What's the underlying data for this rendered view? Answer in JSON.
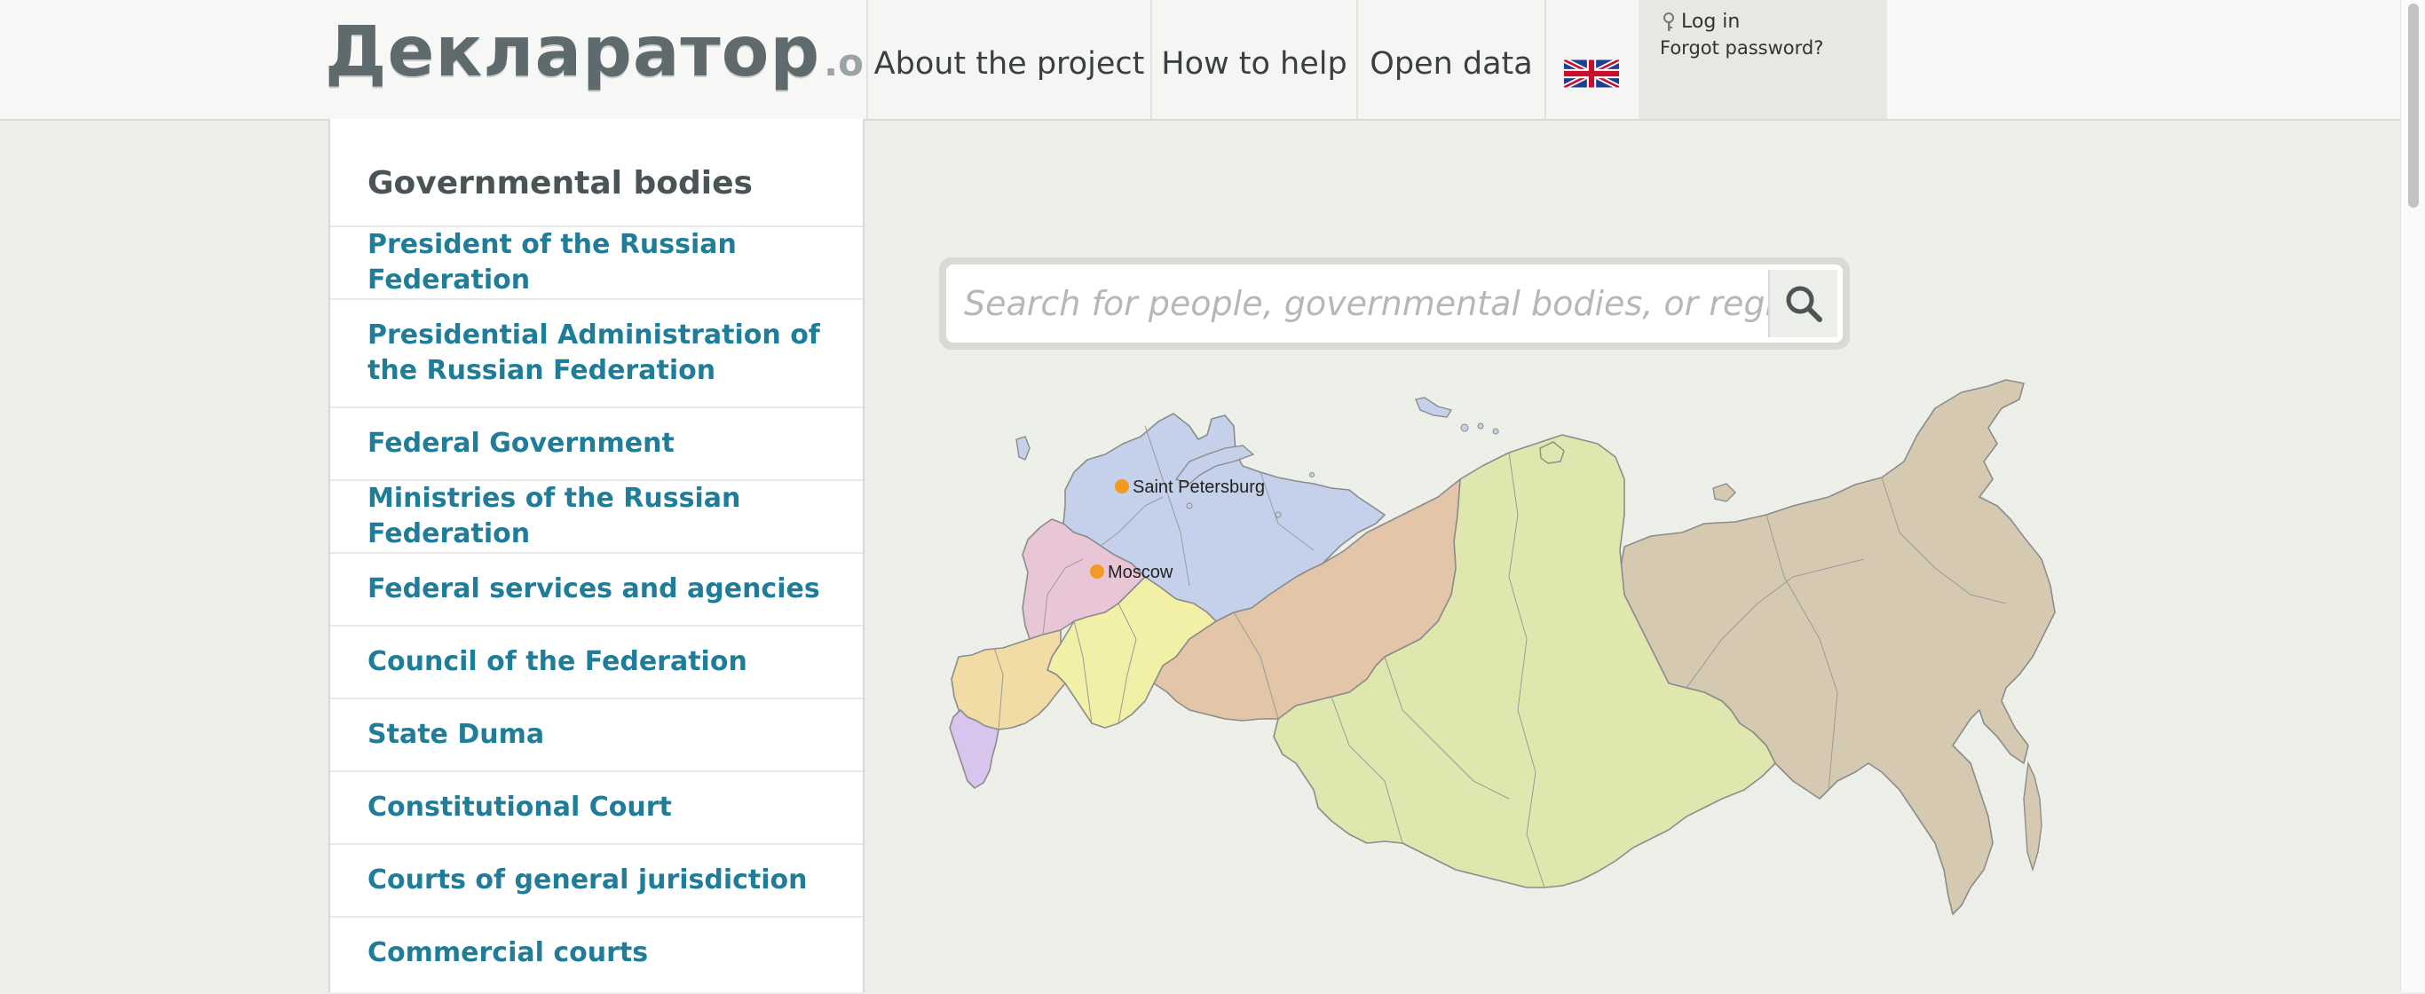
{
  "header": {
    "logo_main": "Декларатор",
    "logo_tld": ".org",
    "nav": [
      {
        "label": "About the project"
      },
      {
        "label": "How to help"
      },
      {
        "label": "Open data"
      }
    ],
    "language_flag": "uk-flag-icon",
    "login": {
      "login_label": "Log in",
      "forgot_label": "Forgot password?"
    }
  },
  "sidebar": {
    "title": "Governmental bodies",
    "items": [
      {
        "label": "President of the Russian Federation"
      },
      {
        "label": "Presidential Administration of the Russian Federation"
      },
      {
        "label": "Federal Government"
      },
      {
        "label": "Ministries of the Russian Federation"
      },
      {
        "label": "Federal services and agencies"
      },
      {
        "label": "Council of the Federation"
      },
      {
        "label": "State Duma"
      },
      {
        "label": "Constitutional Court"
      },
      {
        "label": "Courts of general jurisdiction"
      },
      {
        "label": "Commercial courts"
      }
    ]
  },
  "search": {
    "placeholder": "Search for people, governmental bodies, or regions",
    "button_icon": "search-icon"
  },
  "map": {
    "cities": [
      {
        "name": "Saint Petersburg"
      },
      {
        "name": "Moscow"
      }
    ],
    "colors": {
      "northwest": "#c5d1ea",
      "central": "#e8c6d6",
      "volga": "#f2f0a6",
      "south": "#f1dca6",
      "caucasus": "#d9c4ee",
      "urals": "#e3c6a8",
      "siberia": "#dfe6ae",
      "fareast": "#d6c9b2",
      "city_dot": "#f39a22"
    }
  }
}
